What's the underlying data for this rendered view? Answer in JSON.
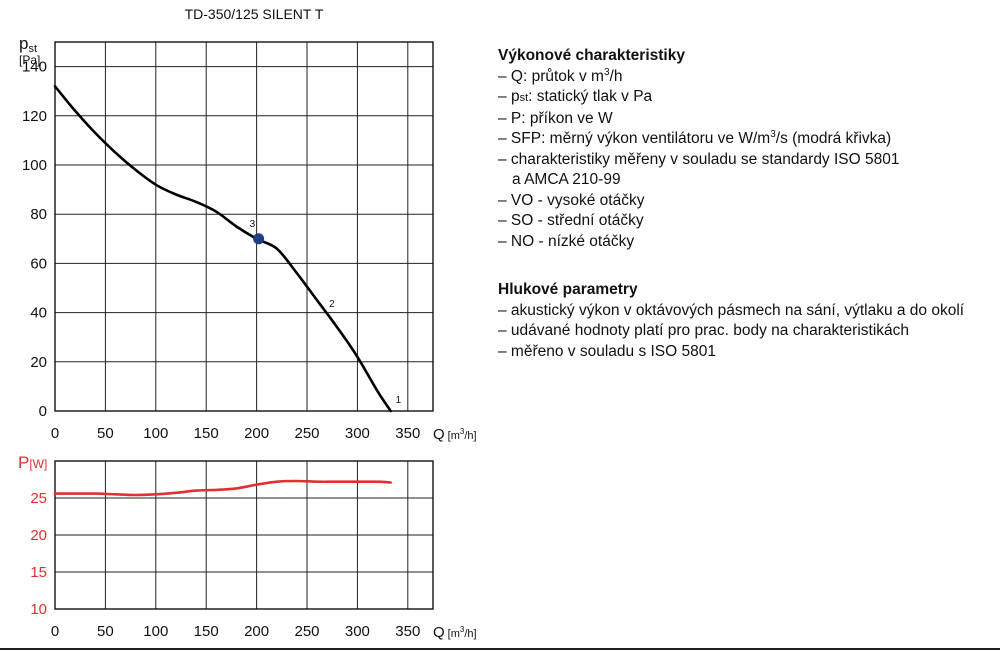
{
  "chart_data": [
    {
      "type": "line",
      "title": "TD-350/125 SILENT T",
      "ylabel_main": "p",
      "ylabel_sub": "st",
      "ylabel_unit": "[Pa]",
      "xlabel": "Q",
      "xlabel_unit_pre": "[m",
      "xlabel_unit_sup": "3",
      "xlabel_unit_post": "/h]",
      "xlim": [
        0,
        375
      ],
      "ylim": [
        0,
        150
      ],
      "x_ticks": [
        0,
        50,
        100,
        150,
        200,
        250,
        300,
        350
      ],
      "y_ticks": [
        0,
        20,
        40,
        60,
        80,
        100,
        120,
        140
      ],
      "grid": true,
      "series": [
        {
          "name": "VO",
          "color": "#000000",
          "x": [
            0,
            20,
            40,
            60,
            80,
            100,
            120,
            140,
            160,
            180,
            200,
            220,
            240,
            260,
            280,
            300,
            320,
            333
          ],
          "y": [
            132,
            122,
            113,
            105,
            98,
            92,
            88,
            85,
            81,
            75,
            70,
            66,
            56,
            45,
            34,
            22,
            8,
            0
          ]
        }
      ],
      "points": [
        {
          "label": "3",
          "x": 202,
          "y": 70,
          "color": "#1f3c88",
          "marker": true
        },
        {
          "label": "2",
          "x": 268,
          "y": 43,
          "marker": false
        },
        {
          "label": "1",
          "x": 334,
          "y": 4,
          "marker": false
        }
      ]
    },
    {
      "type": "line",
      "ylabel": "P",
      "ylabel_unit": "[W]",
      "xlabel": "Q",
      "xlabel_unit_pre": "[m",
      "xlabel_unit_sup": "3",
      "xlabel_unit_post": "/h]",
      "xlim": [
        0,
        375
      ],
      "ylim": [
        10,
        30
      ],
      "x_ticks": [
        0,
        50,
        100,
        150,
        200,
        250,
        300,
        350
      ],
      "y_ticks": [
        10,
        15,
        20,
        25
      ],
      "grid": true,
      "series": [
        {
          "name": "P",
          "color": "#e03030",
          "x": [
            0,
            20,
            40,
            60,
            80,
            100,
            120,
            140,
            160,
            180,
            200,
            220,
            240,
            260,
            280,
            300,
            320,
            333
          ],
          "y": [
            25.6,
            25.6,
            25.6,
            25.5,
            25.4,
            25.5,
            25.7,
            26.0,
            26.1,
            26.3,
            26.8,
            27.2,
            27.3,
            27.2,
            27.2,
            27.2,
            27.2,
            27.1
          ]
        }
      ]
    }
  ],
  "legend": {
    "performance": {
      "heading": "Výkonové charakteristiky",
      "q_pre": "– Q: průtok v m",
      "q_sup": "3",
      "q_post": "/h",
      "pst_dash": "– ",
      "pst_sym": "p",
      "pst_sub": "st",
      "pst_rest": ": statický tlak v Pa",
      "p": "– P: příkon ve W",
      "sfp_pre": "– SFP: měrný výkon ventilátoru ve W/m",
      "sfp_sup": "3",
      "sfp_post": "/s (modrá křivka)",
      "iso_1": "– charakteristiky měřeny v souladu se standardy ISO 5801",
      "iso_2": "a AMCA 210-99",
      "vo": "– VO - vysoké otáčky",
      "so": "– SO - střední otáčky",
      "no": "– NO - nízké otáčky"
    },
    "noise": {
      "heading": "Hlukové parametry",
      "l1": "– akustický výkon v oktávových pásmech na sání, výtlaku a do okolí",
      "l2": "– udávané hodnoty platí pro prac. body na charakteristikách",
      "l3": "– měřeno v souladu s ISO 5801"
    }
  }
}
